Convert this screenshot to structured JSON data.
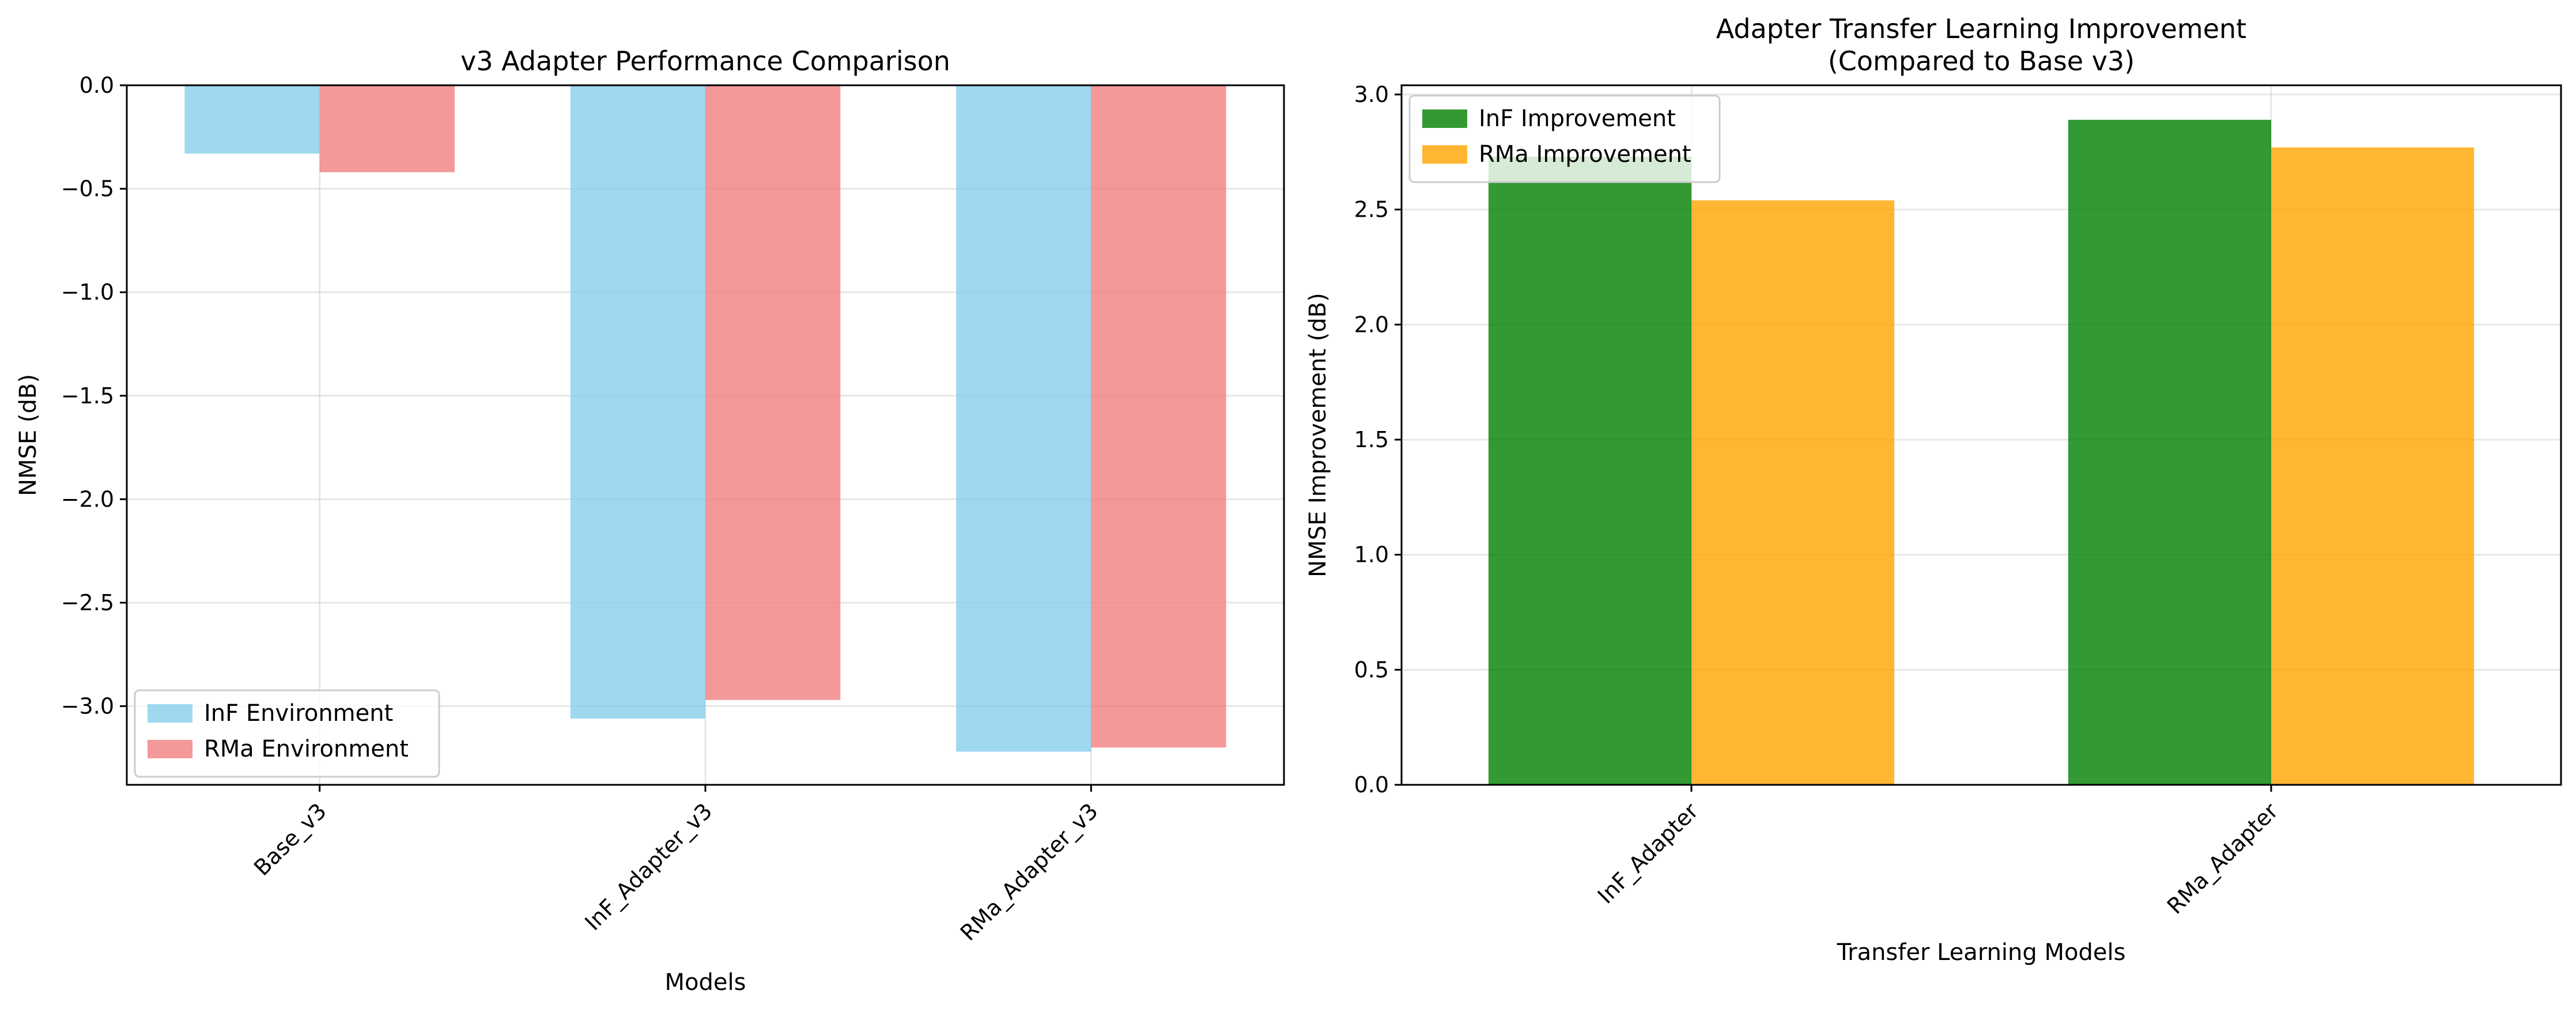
{
  "chart_data": [
    {
      "type": "bar",
      "title": "v3 Adapter Performance Comparison",
      "xlabel": "Models",
      "ylabel": "NMSE (dB)",
      "categories": [
        "Base_v3",
        "InF_Adapter_v3",
        "RMa_Adapter_v3"
      ],
      "series": [
        {
          "name": "InF Environment",
          "color": "#87ceeb",
          "values": [
            -0.33,
            -3.06,
            -3.22
          ]
        },
        {
          "name": "RMa Environment",
          "color": "#f08080",
          "values": [
            -0.42,
            -2.97,
            -3.2
          ]
        }
      ],
      "ylim": [
        -3.38,
        0.0
      ],
      "yticks": [
        "0.0",
        "−0.5",
        "−1.0",
        "−1.5",
        "−2.0",
        "−2.5",
        "−3.0"
      ],
      "ytick_values": [
        0.0,
        -0.5,
        -1.0,
        -1.5,
        -2.0,
        -2.5,
        -3.0
      ],
      "grid": true,
      "legend": "lower-left"
    },
    {
      "type": "bar",
      "title": "Adapter Transfer Learning Improvement",
      "subtitle": "(Compared to Base v3)",
      "xlabel": "Transfer Learning Models",
      "ylabel": "NMSE Improvement (dB)",
      "categories": [
        "InF_Adapter",
        "RMa_Adapter"
      ],
      "series": [
        {
          "name": "InF Improvement",
          "color": "#008000",
          "values": [
            2.73,
            2.89
          ]
        },
        {
          "name": "RMa Improvement",
          "color": "#ffa500",
          "values": [
            2.54,
            2.77
          ]
        }
      ],
      "ylim": [
        0.0,
        3.04
      ],
      "yticks": [
        "0.0",
        "0.5",
        "1.0",
        "1.5",
        "2.0",
        "2.5",
        "3.0"
      ],
      "ytick_values": [
        0.0,
        0.5,
        1.0,
        1.5,
        2.0,
        2.5,
        3.0
      ],
      "baseline": 0,
      "grid": true,
      "legend": "upper-left"
    }
  ]
}
